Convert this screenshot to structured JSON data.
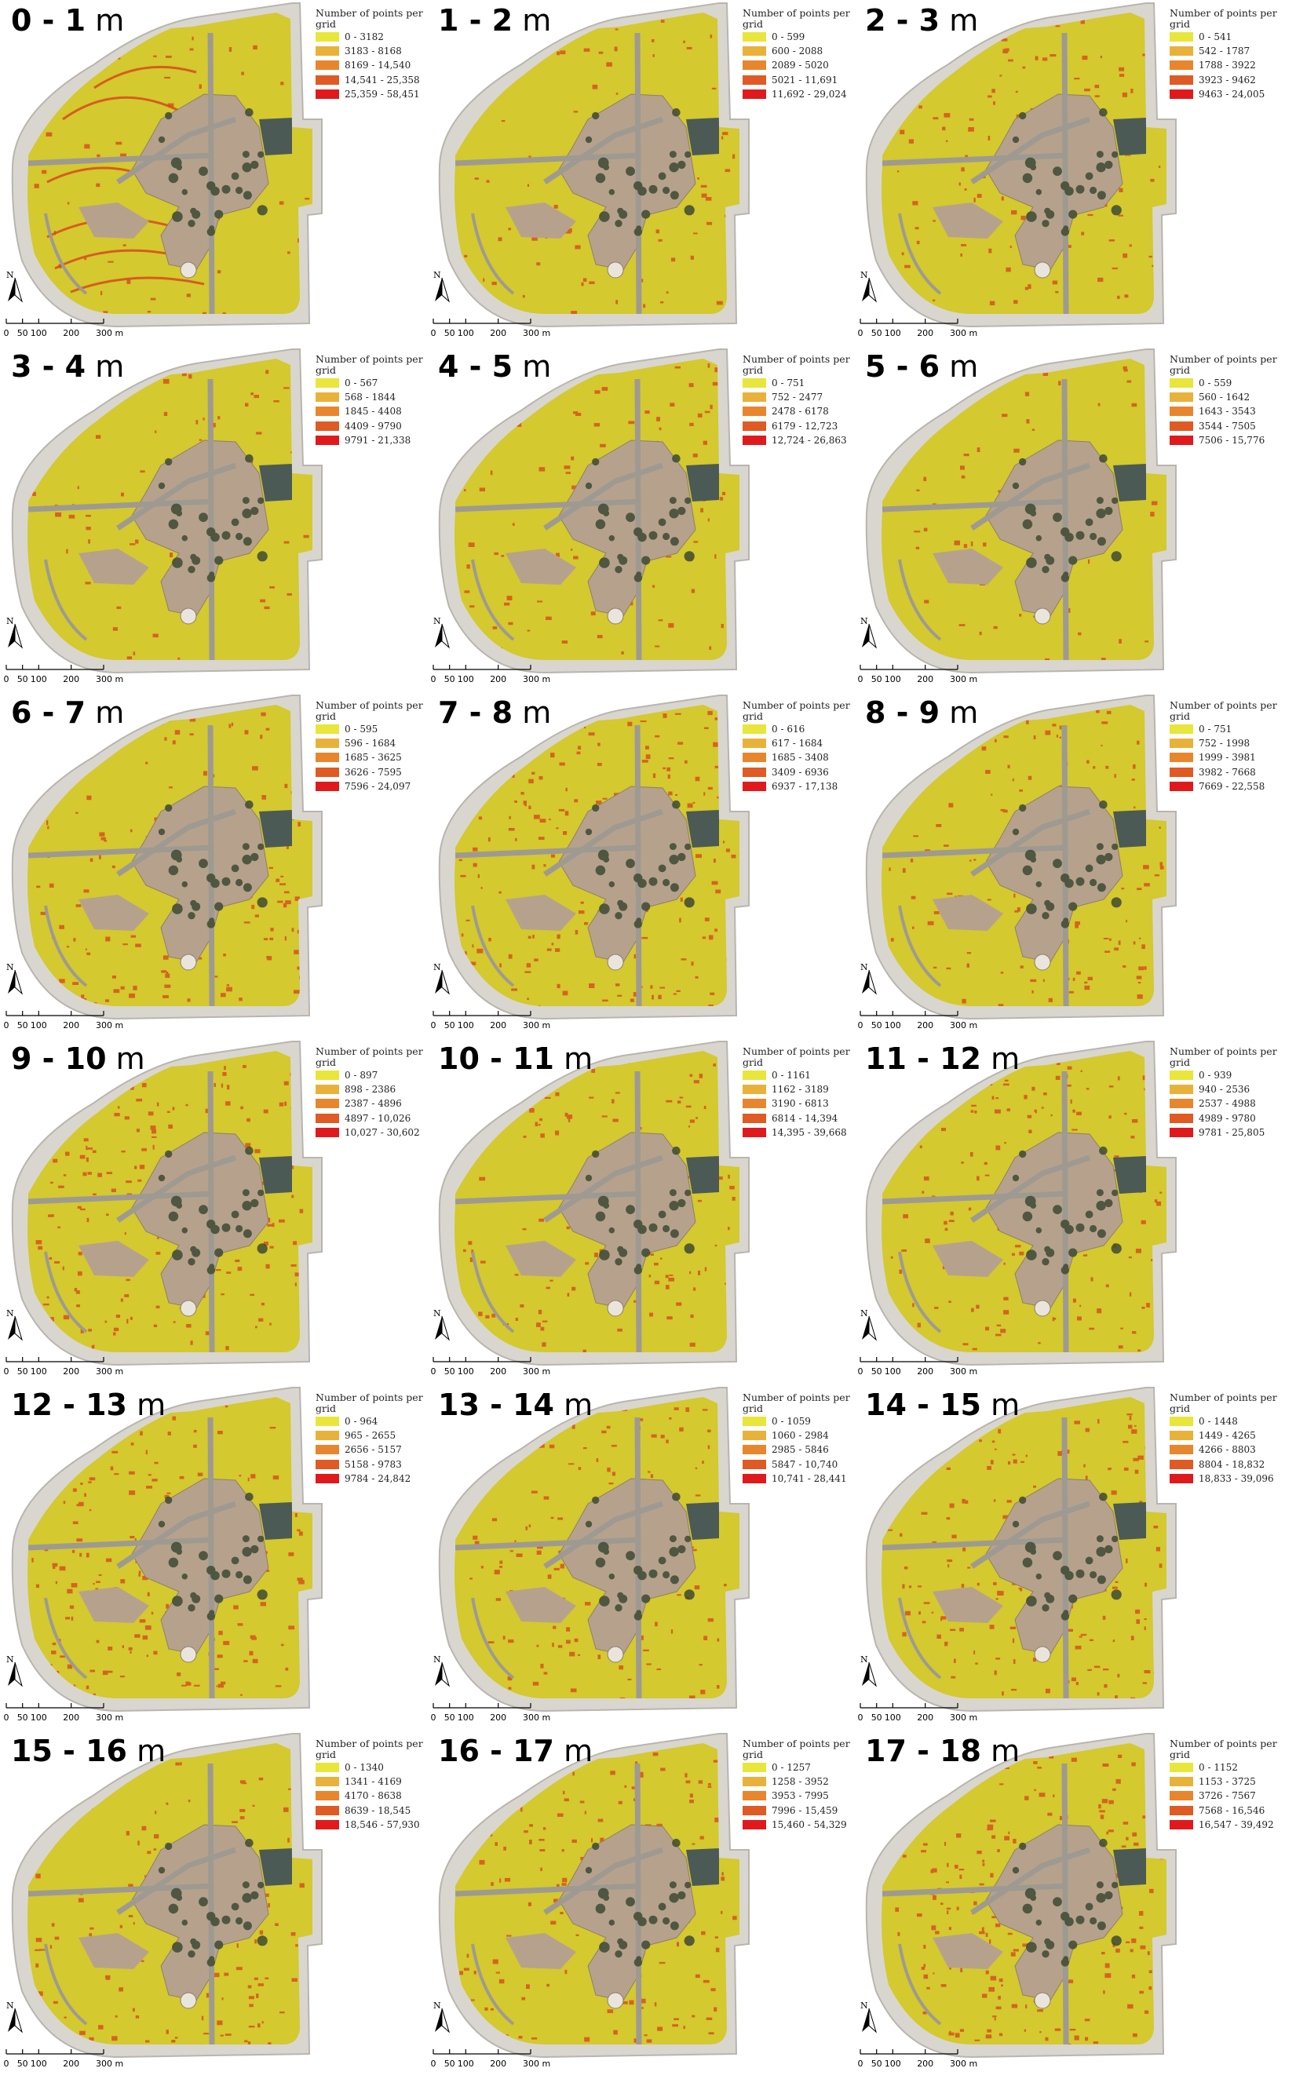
{
  "legend_title": "Number of points per grid",
  "unit": "m",
  "north_label": "N",
  "scale_labels": [
    "0",
    "50",
    "100",
    "200",
    "300 m"
  ],
  "colors": {
    "class_colors": [
      "#e8e63a",
      "#e8b23a",
      "#e8862e",
      "#e05a24",
      "#e01a1c"
    ],
    "canopy": "#d4c92e",
    "bare_ground": "#b6a28c",
    "paths": "#9e9a92",
    "tree_dark": "#3f4a33",
    "water": "#4c5a55",
    "hot_spot": "#d64a1e"
  },
  "panels": [
    {
      "range": "0 - 1",
      "legend": [
        "0 - 3182",
        "3183 - 8168",
        "8169 - 14,540",
        "14,541 - 25,358",
        "25,359 - 58,451"
      ]
    },
    {
      "range": "1 - 2",
      "legend": [
        "0 - 599",
        "600 - 2088",
        "2089 - 5020",
        "5021 - 11,691",
        "11,692 - 29,024"
      ]
    },
    {
      "range": "2 - 3",
      "legend": [
        "0 - 541",
        "542 - 1787",
        "1788 - 3922",
        "3923 - 9462",
        "9463 - 24,005"
      ]
    },
    {
      "range": "3 - 4",
      "legend": [
        "0 - 567",
        "568 - 1844",
        "1845 - 4408",
        "4409 - 9790",
        "9791 - 21,338"
      ]
    },
    {
      "range": "4 - 5",
      "legend": [
        "0 - 751",
        "752 - 2477",
        "2478 - 6178",
        "6179 - 12,723",
        "12,724 - 26,863"
      ]
    },
    {
      "range": "5 - 6",
      "legend": [
        "0 - 559",
        "560 - 1642",
        "1643 - 3543",
        "3544 - 7505",
        "7506 - 15,776"
      ]
    },
    {
      "range": "6 - 7",
      "legend": [
        "0 - 595",
        "596 - 1684",
        "1685 - 3625",
        "3626 - 7595",
        "7596 - 24,097"
      ]
    },
    {
      "range": "7 - 8",
      "legend": [
        "0 - 616",
        "617 - 1684",
        "1685 - 3408",
        "3409 - 6936",
        "6937 - 17,138"
      ]
    },
    {
      "range": "8 - 9",
      "legend": [
        "0 - 751",
        "752 - 1998",
        "1999 - 3981",
        "3982 - 7668",
        "7669 - 22,558"
      ]
    },
    {
      "range": "9 - 10",
      "legend": [
        "0 - 897",
        "898 - 2386",
        "2387 - 4896",
        "4897 - 10,026",
        "10,027 - 30,602"
      ]
    },
    {
      "range": "10 - 11",
      "legend": [
        "0 - 1161",
        "1162 - 3189",
        "3190 - 6813",
        "6814 - 14,394",
        "14,395 - 39,668"
      ]
    },
    {
      "range": "11 - 12",
      "legend": [
        "0 - 939",
        "940 - 2536",
        "2537 - 4988",
        "4989 - 9780",
        "9781 - 25,805"
      ]
    },
    {
      "range": "12 - 13",
      "legend": [
        "0 - 964",
        "965 - 2655",
        "2656 - 5157",
        "5158 - 9783",
        "9784 - 24,842"
      ]
    },
    {
      "range": "13 - 14",
      "legend": [
        "0 - 1059",
        "1060 - 2984",
        "2985 - 5846",
        "5847 - 10,740",
        "10,741 - 28,441"
      ]
    },
    {
      "range": "14 - 15",
      "legend": [
        "0 - 1448",
        "1449 - 4265",
        "4266 - 8803",
        "8804 - 18,832",
        "18,833 - 39,096"
      ]
    },
    {
      "range": "15 - 16",
      "legend": [
        "0 - 1340",
        "1341 - 4169",
        "4170 - 8638",
        "8639 - 18,545",
        "18,546 - 57,930"
      ]
    },
    {
      "range": "16 - 17",
      "legend": [
        "0 - 1257",
        "1258 - 3952",
        "3953 - 7995",
        "7996 - 15,459",
        "15,460 - 54,329"
      ]
    },
    {
      "range": "17 - 18",
      "legend": [
        "0 - 1152",
        "1153 - 3725",
        "3726 - 7567",
        "7568 - 16,546",
        "16,547 - 39,492"
      ]
    }
  ]
}
